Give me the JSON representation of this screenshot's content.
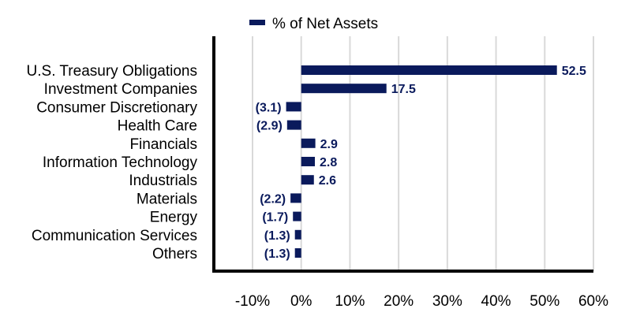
{
  "chart_data": {
    "type": "bar",
    "orientation": "horizontal",
    "title": "",
    "xlabel": "",
    "ylabel": "",
    "legend_position": "top",
    "grid": true,
    "bar_color": "#0a1a5c",
    "xlim": [
      -10,
      60
    ],
    "x_ticks": [
      -10,
      0,
      10,
      20,
      30,
      40,
      50,
      60
    ],
    "x_tick_labels": [
      "-10%",
      "0%",
      "10%",
      "20%",
      "30%",
      "40%",
      "50%",
      "60%"
    ],
    "categories": [
      "U.S. Treasury Obligations",
      "Investment Companies",
      "Consumer Discretionary",
      "Health Care",
      "Financials",
      "Information Technology",
      "Industrials",
      "Materials",
      "Energy",
      "Communication Services",
      "Others"
    ],
    "series": [
      {
        "name": "% of Net Assets",
        "values": [
          52.5,
          17.5,
          -3.1,
          -2.9,
          2.9,
          2.8,
          2.6,
          -2.2,
          -1.7,
          -1.3,
          -1.3
        ],
        "labels": [
          "52.5",
          "17.5",
          "(3.1)",
          "(2.9)",
          "2.9",
          "2.8",
          "2.6",
          "(2.2)",
          "(1.7)",
          "(1.3)",
          "(1.3)"
        ]
      }
    ]
  }
}
